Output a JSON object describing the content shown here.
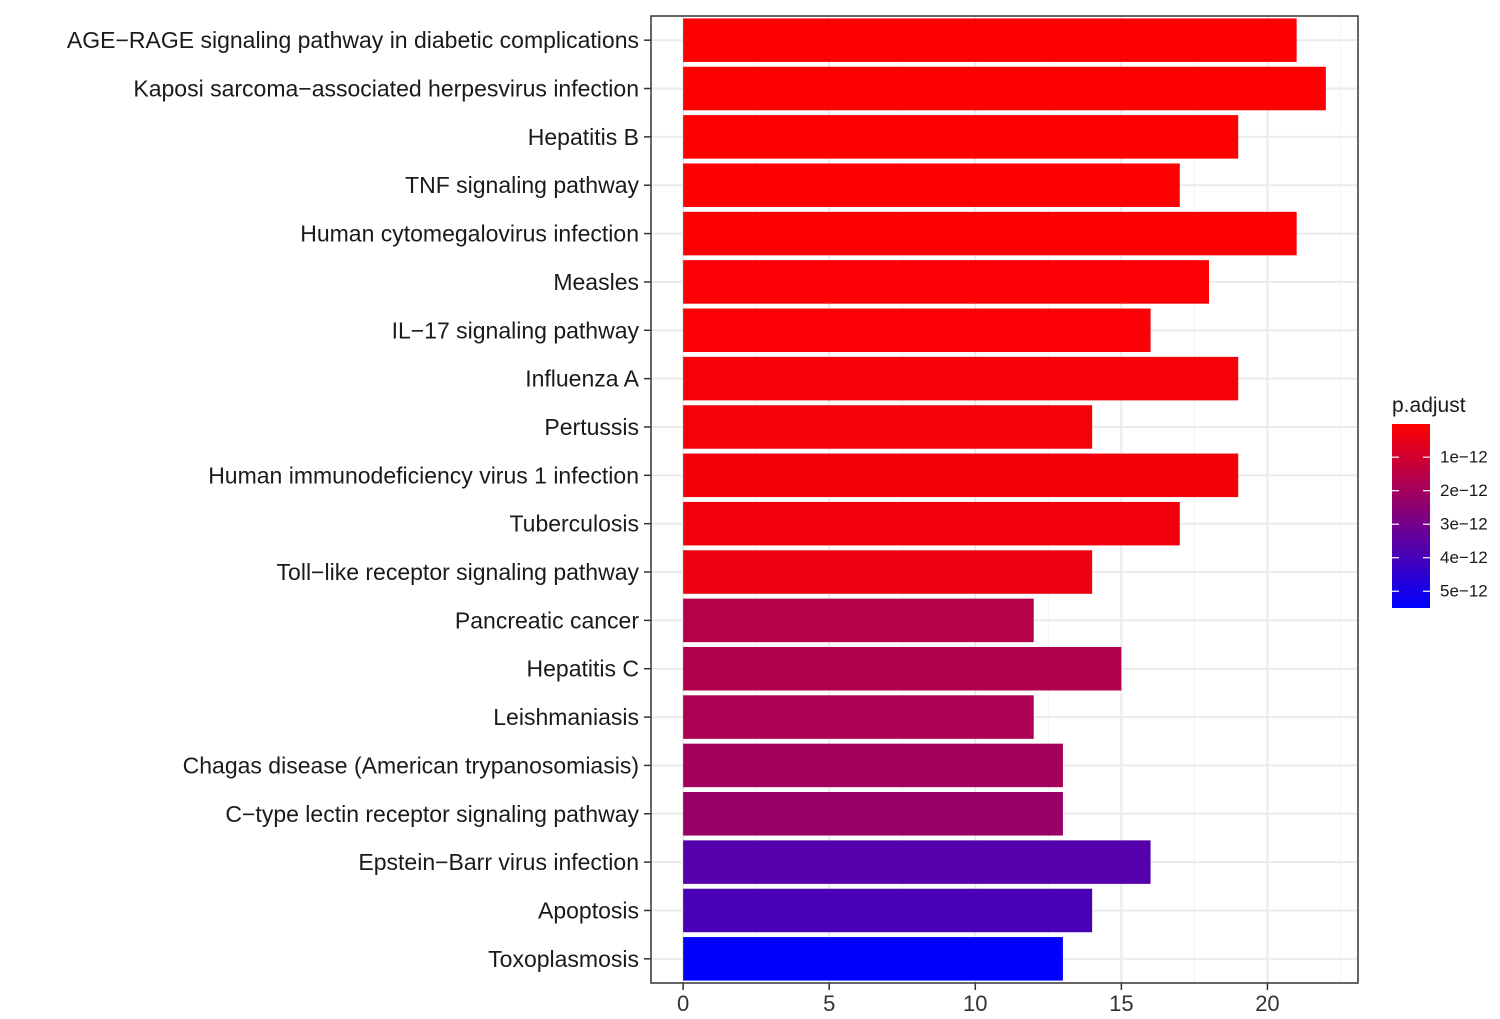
{
  "chart_data": {
    "type": "bar",
    "orientation": "horizontal",
    "title": "",
    "xlabel": "",
    "ylabel": "",
    "xlim": [
      -1.1,
      23.1
    ],
    "xticks": [
      0,
      5,
      10,
      15,
      20
    ],
    "grid": true,
    "legend_placement": "right",
    "categories": [
      "AGE−RAGE signaling pathway in diabetic complications",
      "Kaposi sarcoma−associated herpesvirus infection",
      "Hepatitis B",
      "TNF signaling pathway",
      "Human cytomegalovirus infection",
      "Measles",
      "IL−17 signaling pathway",
      "Influenza A",
      "Pertussis",
      "Human immunodeficiency virus 1 infection",
      "Tuberculosis",
      "Toll−like receptor signaling pathway",
      "Pancreatic cancer",
      "Hepatitis C",
      "Leishmaniasis",
      "Chagas disease (American trypanosomiasis)",
      "C−type lectin receptor signaling pathway",
      "Epstein−Barr virus infection",
      "Apoptosis",
      "Toxoplasmosis"
    ],
    "values": [
      21,
      22,
      19,
      17,
      21,
      18,
      16,
      19,
      14,
      19,
      17,
      14,
      12,
      15,
      12,
      13,
      13,
      16,
      14,
      13
    ],
    "p_adjust": [
      1e-14,
      1e-14,
      2e-14,
      5e-14,
      8e-14,
      1e-13,
      1e-13,
      1.5e-13,
      2e-13,
      2.5e-13,
      3e-13,
      4e-13,
      1.6e-12,
      1.7e-12,
      1.8e-12,
      2e-12,
      2.2e-12,
      3.7e-12,
      3.9e-12,
      5.5e-12
    ],
    "color_scale": {
      "title": "p.adjust",
      "low_color": "#ff0000",
      "high_color": "#0000ff",
      "min": 1e-14,
      "max": 5.5e-12,
      "tick_values": [
        1e-12,
        2e-12,
        3e-12,
        4e-12,
        5e-12
      ],
      "tick_labels": [
        "1e−12",
        "2e−12",
        "3e−12",
        "4e−12",
        "5e−12"
      ]
    }
  }
}
